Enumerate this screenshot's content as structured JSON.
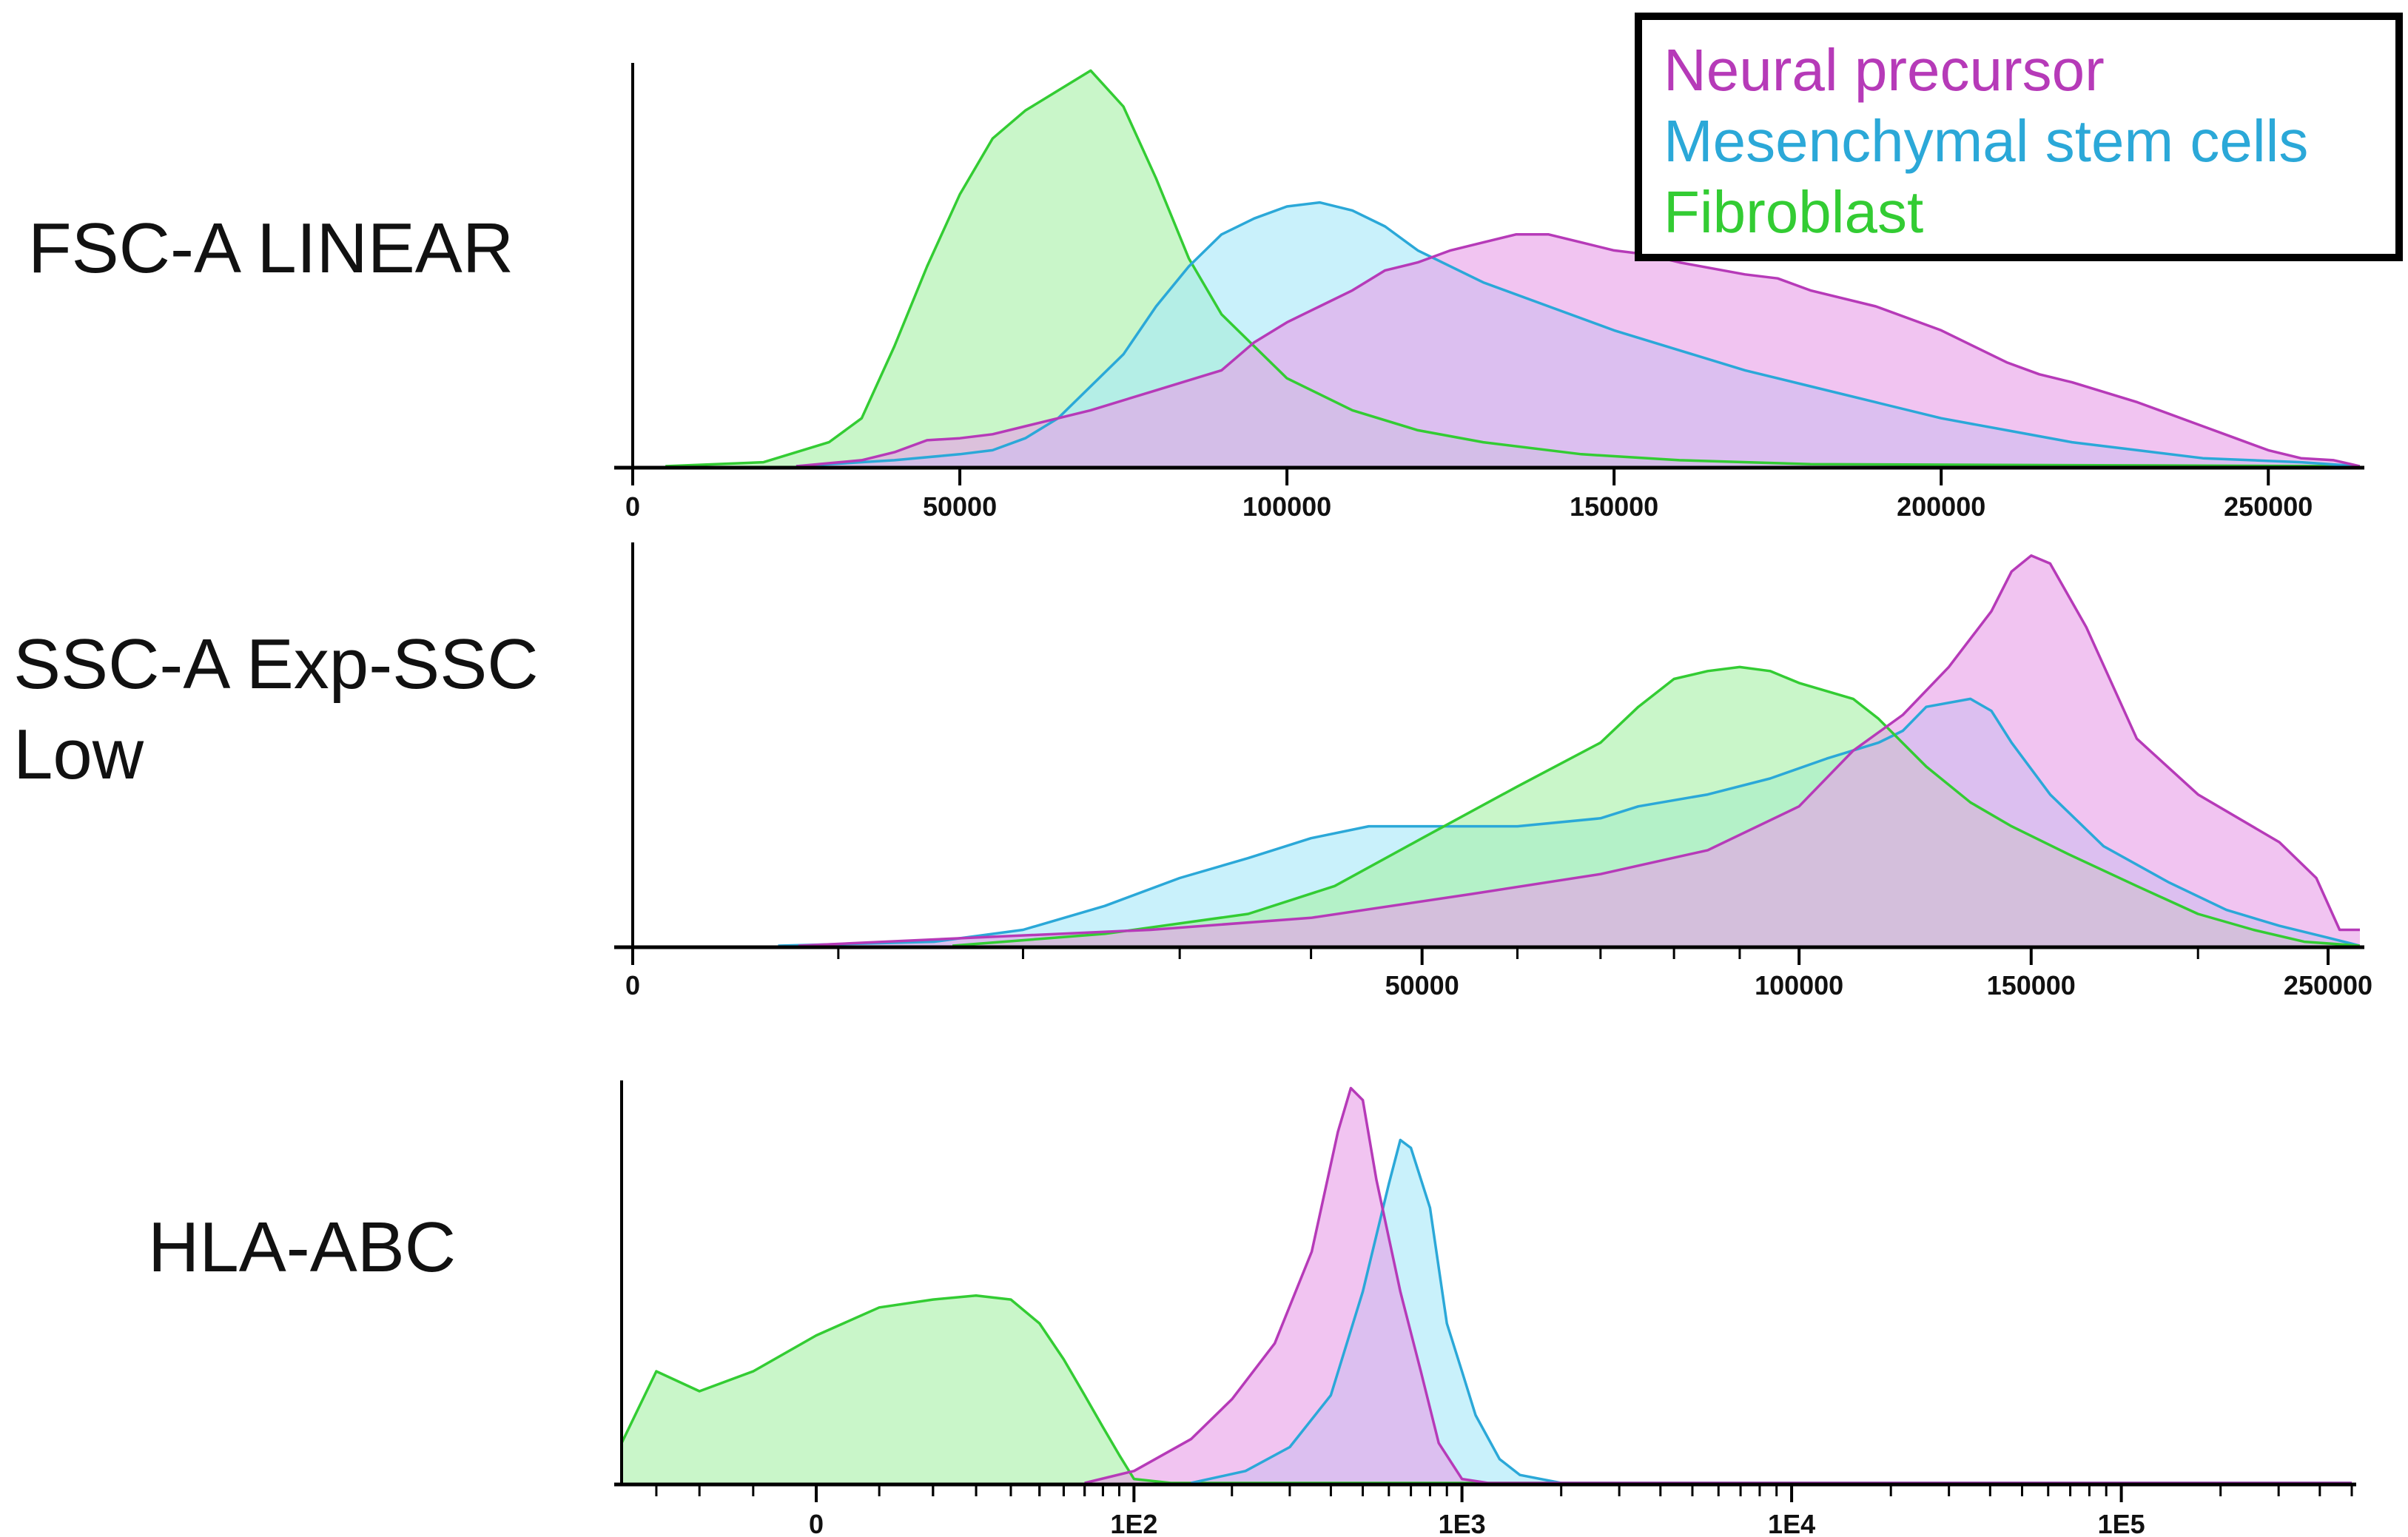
{
  "legend": [
    {
      "label": "Neural precursor",
      "color": "#b63ab8",
      "fill": "#e8a0e8"
    },
    {
      "label": "Mesenchymal stem cells",
      "color": "#2ba8d8",
      "fill": "#a8e8f8"
    },
    {
      "label": "Fibroblast",
      "color": "#33cc33",
      "fill": "#a8f0a8"
    }
  ],
  "overlap_fill": "#8fb8a8",
  "chart_data": [
    {
      "type": "area",
      "row_label": "FSC-A LINEAR",
      "xscale": "linear",
      "xlim": [
        0,
        264000
      ],
      "ticks": [
        {
          "value": 0,
          "label": "0"
        },
        {
          "value": 50000,
          "label": "50000"
        },
        {
          "value": 100000,
          "label": "100000"
        },
        {
          "value": 150000,
          "label": "150000"
        },
        {
          "value": 200000,
          "label": "200000"
        },
        {
          "value": 250000,
          "label": "250000"
        }
      ],
      "series": [
        {
          "name": "Fibroblast",
          "points": [
            [
              5000,
              0
            ],
            [
              20000,
              1
            ],
            [
              30000,
              6
            ],
            [
              35000,
              12
            ],
            [
              40000,
              30
            ],
            [
              45000,
              50
            ],
            [
              50000,
              68
            ],
            [
              55000,
              82
            ],
            [
              60000,
              89
            ],
            [
              65000,
              94
            ],
            [
              70000,
              99
            ],
            [
              75000,
              90
            ],
            [
              80000,
              72
            ],
            [
              85000,
              52
            ],
            [
              90000,
              38
            ],
            [
              95000,
              30
            ],
            [
              100000,
              22
            ],
            [
              110000,
              14
            ],
            [
              120000,
              9
            ],
            [
              130000,
              6
            ],
            [
              145000,
              3
            ],
            [
              160000,
              1.5
            ],
            [
              180000,
              0.5
            ],
            [
              264000,
              0
            ]
          ]
        },
        {
          "name": "Mesenchymal stem cells",
          "points": [
            [
              25000,
              0
            ],
            [
              40000,
              1.5
            ],
            [
              50000,
              3
            ],
            [
              55000,
              4
            ],
            [
              60000,
              7
            ],
            [
              65000,
              12
            ],
            [
              70000,
              20
            ],
            [
              75000,
              28
            ],
            [
              80000,
              40
            ],
            [
              85000,
              50
            ],
            [
              90000,
              58
            ],
            [
              95000,
              62
            ],
            [
              100000,
              65
            ],
            [
              105000,
              66
            ],
            [
              110000,
              64
            ],
            [
              115000,
              60
            ],
            [
              120000,
              54
            ],
            [
              130000,
              46
            ],
            [
              140000,
              40
            ],
            [
              150000,
              34
            ],
            [
              160000,
              29
            ],
            [
              170000,
              24
            ],
            [
              180000,
              20
            ],
            [
              190000,
              16
            ],
            [
              200000,
              12
            ],
            [
              210000,
              9
            ],
            [
              220000,
              6
            ],
            [
              230000,
              4
            ],
            [
              240000,
              2
            ],
            [
              255000,
              1
            ],
            [
              264000,
              0
            ]
          ]
        },
        {
          "name": "Neural precursor",
          "points": [
            [
              25000,
              0
            ],
            [
              35000,
              1.5
            ],
            [
              40000,
              3.5
            ],
            [
              45000,
              6.5
            ],
            [
              50000,
              7
            ],
            [
              55000,
              8
            ],
            [
              60000,
              10
            ],
            [
              70000,
              14
            ],
            [
              80000,
              19
            ],
            [
              90000,
              24
            ],
            [
              95000,
              31
            ],
            [
              100000,
              36
            ],
            [
              105000,
              40
            ],
            [
              110000,
              44
            ],
            [
              115000,
              49
            ],
            [
              120000,
              51
            ],
            [
              125000,
              54
            ],
            [
              130000,
              56
            ],
            [
              135000,
              58
            ],
            [
              140000,
              58
            ],
            [
              145000,
              56
            ],
            [
              150000,
              54
            ],
            [
              155000,
              53
            ],
            [
              160000,
              51
            ],
            [
              170000,
              48
            ],
            [
              175000,
              47
            ],
            [
              180000,
              44
            ],
            [
              190000,
              40
            ],
            [
              200000,
              34
            ],
            [
              210000,
              26
            ],
            [
              215000,
              23
            ],
            [
              220000,
              21
            ],
            [
              230000,
              16
            ],
            [
              240000,
              10
            ],
            [
              245000,
              7
            ],
            [
              250000,
              4
            ],
            [
              255000,
              2
            ],
            [
              260000,
              1.5
            ],
            [
              264000,
              0
            ]
          ]
        }
      ]
    },
    {
      "type": "area",
      "row_label": "SSC-A Exp-SSC Low",
      "xscale": "biexponential",
      "xlim": [
        0,
        264000
      ],
      "ticks": [
        {
          "value": 0,
          "label": "0"
        },
        {
          "value": 50000,
          "label": "50000"
        },
        {
          "value": 100000,
          "label": "100000"
        },
        {
          "value": 150000,
          "label": "150000"
        },
        {
          "value": 250000,
          "label": "250000"
        }
      ],
      "series": [
        {
          "name": "Mesenchymal stem cells",
          "points": [
            [
              7000,
              0
            ],
            [
              15000,
              1
            ],
            [
              20000,
              4
            ],
            [
              25000,
              10
            ],
            [
              30000,
              17
            ],
            [
              35000,
              22
            ],
            [
              40000,
              27
            ],
            [
              45000,
              30
            ],
            [
              50000,
              30
            ],
            [
              60000,
              30
            ],
            [
              70000,
              32
            ],
            [
              75000,
              35
            ],
            [
              85000,
              38
            ],
            [
              95000,
              42
            ],
            [
              105000,
              47
            ],
            [
              115000,
              51
            ],
            [
              120000,
              54
            ],
            [
              125000,
              60
            ],
            [
              135000,
              62
            ],
            [
              140000,
              59
            ],
            [
              145000,
              51
            ],
            [
              155000,
              38
            ],
            [
              170000,
              25
            ],
            [
              190000,
              16
            ],
            [
              210000,
              9
            ],
            [
              230000,
              5
            ],
            [
              250000,
              2
            ],
            [
              264000,
              0
            ]
          ]
        },
        {
          "name": "Fibroblast",
          "points": [
            [
              16000,
              0
            ],
            [
              25000,
              3
            ],
            [
              35000,
              8
            ],
            [
              42000,
              15
            ],
            [
              50000,
              27
            ],
            [
              60000,
              40
            ],
            [
              70000,
              51
            ],
            [
              75000,
              60
            ],
            [
              80000,
              67
            ],
            [
              85000,
              69
            ],
            [
              90000,
              70
            ],
            [
              95000,
              69
            ],
            [
              100000,
              66
            ],
            [
              110000,
              62
            ],
            [
              115000,
              57
            ],
            [
              125000,
              45
            ],
            [
              135000,
              36
            ],
            [
              145000,
              30
            ],
            [
              160000,
              23
            ],
            [
              180000,
              15
            ],
            [
              200000,
              8
            ],
            [
              220000,
              4
            ],
            [
              240000,
              1
            ],
            [
              264000,
              0
            ]
          ]
        },
        {
          "name": "Neural precursor",
          "points": [
            [
              8000,
              0
            ],
            [
              17000,
              2
            ],
            [
              28000,
              4
            ],
            [
              40000,
              7
            ],
            [
              55000,
              13
            ],
            [
              70000,
              18
            ],
            [
              85000,
              24
            ],
            [
              100000,
              35
            ],
            [
              110000,
              49
            ],
            [
              120000,
              58
            ],
            [
              130000,
              70
            ],
            [
              140000,
              84
            ],
            [
              145000,
              94
            ],
            [
              150000,
              98
            ],
            [
              155000,
              96
            ],
            [
              165000,
              80
            ],
            [
              180000,
              52
            ],
            [
              200000,
              38
            ],
            [
              230000,
              26
            ],
            [
              245000,
              17
            ],
            [
              255000,
              4
            ],
            [
              264000,
              4
            ]
          ]
        }
      ]
    },
    {
      "type": "area",
      "row_label": "HLA-ABC",
      "xscale": "biexponential",
      "xlim": [
        -40,
        500000
      ],
      "ticks": [
        {
          "value": 0,
          "label": "0"
        },
        {
          "value": 100,
          "label": "1E2"
        },
        {
          "value": 1000,
          "label": "1E3"
        },
        {
          "value": 10000,
          "label": "1E4"
        },
        {
          "value": 100000,
          "label": "1E5"
        }
      ],
      "series": [
        {
          "name": "Fibroblast",
          "points": [
            [
              -40,
              10
            ],
            [
              -30,
              28
            ],
            [
              -20,
              23
            ],
            [
              -10,
              28
            ],
            [
              0,
              37
            ],
            [
              10,
              44
            ],
            [
              20,
              46
            ],
            [
              30,
              47
            ],
            [
              40,
              46
            ],
            [
              50,
              40
            ],
            [
              60,
              31
            ],
            [
              70,
              22
            ],
            [
              80,
              14
            ],
            [
              90,
              7
            ],
            [
              100,
              1
            ],
            [
              130,
              0
            ],
            [
              500000,
              0
            ]
          ]
        },
        {
          "name": "Mesenchymal stem cells",
          "points": [
            [
              150,
              0
            ],
            [
              220,
              3
            ],
            [
              300,
              9
            ],
            [
              400,
              22
            ],
            [
              500,
              48
            ],
            [
              600,
              75
            ],
            [
              650,
              86
            ],
            [
              700,
              84
            ],
            [
              800,
              69
            ],
            [
              900,
              40
            ],
            [
              1000,
              28
            ],
            [
              1100,
              17
            ],
            [
              1300,
              6
            ],
            [
              1500,
              2
            ],
            [
              2000,
              0
            ],
            [
              500000,
              0
            ]
          ]
        },
        {
          "name": "Neural precursor",
          "points": [
            [
              70,
              0
            ],
            [
              100,
              3
            ],
            [
              150,
              11
            ],
            [
              200,
              21
            ],
            [
              270,
              35
            ],
            [
              350,
              58
            ],
            [
              420,
              88
            ],
            [
              460,
              99
            ],
            [
              500,
              96
            ],
            [
              550,
              76
            ],
            [
              650,
              48
            ],
            [
              750,
              28
            ],
            [
              850,
              10
            ],
            [
              1000,
              1
            ],
            [
              1200,
              0
            ],
            [
              500000,
              0
            ]
          ]
        }
      ]
    }
  ]
}
